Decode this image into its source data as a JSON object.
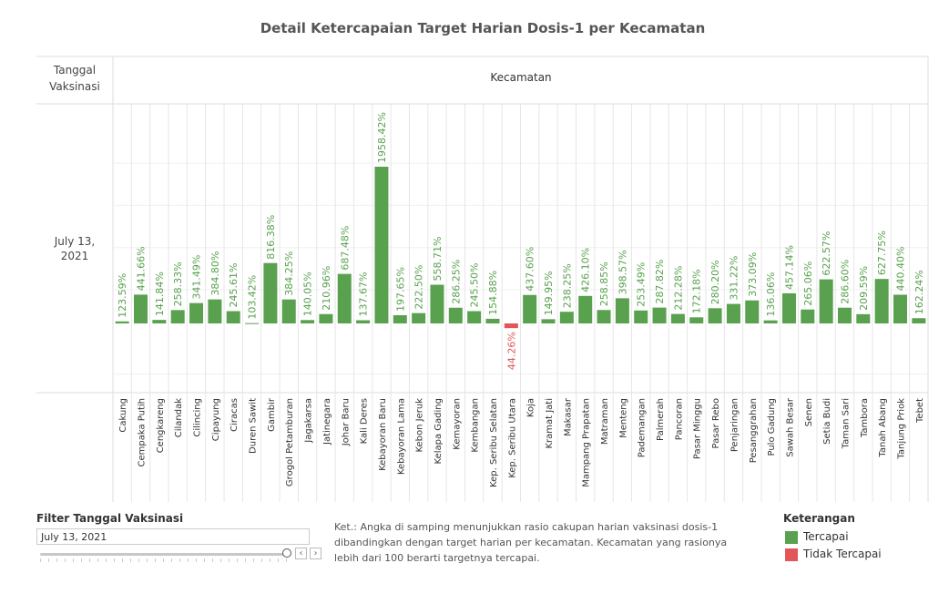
{
  "title": "Detail Ketercapaian Target Harian Dosis-1 per Kecamatan",
  "row_header": "Tanggal Vaksinasi",
  "column_header": "Kecamatan",
  "row_value": "July 13, 2021",
  "colors": {
    "achieved": "#59a14f",
    "not_achieved": "#e15759"
  },
  "chart_data": {
    "type": "bar",
    "categories": [
      "Cakung",
      "Cempaka Putih",
      "Cengkareng",
      "Cilandak",
      "Cilincing",
      "Cipayung",
      "Ciracas",
      "Duren Sawit",
      "Gambir",
      "Grogol Petamburan",
      "Jagakarsa",
      "Jatinegara",
      "Johar Baru",
      "Kali Deres",
      "Kebayoran Baru",
      "Kebayoran Lama",
      "Kebon Jeruk",
      "Kelapa Gading",
      "Kemayoran",
      "Kembangan",
      "Kep. Seribu Selatan",
      "Kep. Seribu Utara",
      "Koja",
      "Kramat Jati",
      "Makasar",
      "Mampang Prapatan",
      "Matraman",
      "Menteng",
      "Pademangan",
      "Palmerah",
      "Pancoran",
      "Pasar Minggu",
      "Pasar Rebo",
      "Penjaringan",
      "Pesanggrahan",
      "Pulo Gadung",
      "Sawah Besar",
      "Senen",
      "Setia Budi",
      "Taman Sari",
      "Tambora",
      "Tanah Abang",
      "Tanjung Priok",
      "Tebet"
    ],
    "labels": [
      "123.59%",
      "441.66%",
      "141.84%",
      "258.33%",
      "341.49%",
      "384.80%",
      "245.61%",
      "103.42%",
      "816.38%",
      "384.25%",
      "140.05%",
      "210.96%",
      "687.48%",
      "137.67%",
      "1958.42%",
      "197.65%",
      "222.50%",
      "558.71%",
      "286.25%",
      "245.50%",
      "154.88%",
      "44.26%",
      "437.60%",
      "149.95%",
      "238.25%",
      "426.10%",
      "258.85%",
      "398.57%",
      "253.49%",
      "287.82%",
      "212.28%",
      "172.18%",
      "280.20%",
      "331.22%",
      "373.09%",
      "136.06%",
      "457.14%",
      "265.06%",
      "622.57%",
      "286.60%",
      "209.59%",
      "627.75%",
      "440.40%",
      "162.24%"
    ],
    "values": [
      123.59,
      441.66,
      141.84,
      258.33,
      341.49,
      384.8,
      245.61,
      103.42,
      816.38,
      384.25,
      140.05,
      210.96,
      687.48,
      137.67,
      1958.42,
      197.65,
      222.5,
      558.71,
      286.25,
      245.5,
      154.88,
      44.26,
      437.6,
      149.95,
      238.25,
      426.1,
      258.85,
      398.57,
      253.49,
      287.82,
      212.28,
      172.18,
      280.2,
      331.22,
      373.09,
      136.06,
      457.14,
      265.06,
      622.57,
      286.6,
      209.59,
      627.75,
      440.4,
      162.24
    ],
    "status": [
      "Tercapai",
      "Tercapai",
      "Tercapai",
      "Tercapai",
      "Tercapai",
      "Tercapai",
      "Tercapai",
      "Tercapai",
      "Tercapai",
      "Tercapai",
      "Tercapai",
      "Tercapai",
      "Tercapai",
      "Tercapai",
      "Tercapai",
      "Tercapai",
      "Tercapai",
      "Tercapai",
      "Tercapai",
      "Tercapai",
      "Tercapai",
      "Tidak Tercapai",
      "Tercapai",
      "Tercapai",
      "Tercapai",
      "Tercapai",
      "Tercapai",
      "Tercapai",
      "Tercapai",
      "Tercapai",
      "Tercapai",
      "Tercapai",
      "Tercapai",
      "Tercapai",
      "Tercapai",
      "Tercapai",
      "Tercapai",
      "Tercapai",
      "Tercapai",
      "Tercapai",
      "Tercapai",
      "Tercapai",
      "Tercapai",
      "Tercapai"
    ],
    "baseline": 100
  },
  "filter": {
    "label": "Filter Tanggal Vaksinasi",
    "value": "July 13, 2021"
  },
  "note": "Ket.: Angka di samping menunjukkan rasio cakupan harian vaksinasi dosis-1 dibandingkan dengan target harian per kecamatan. Kecamatan yang rasionya lebih dari 100 berarti targetnya tercapai.",
  "legend": {
    "title": "Keterangan",
    "items": [
      "Tercapai",
      "Tidak Tercapai"
    ]
  }
}
